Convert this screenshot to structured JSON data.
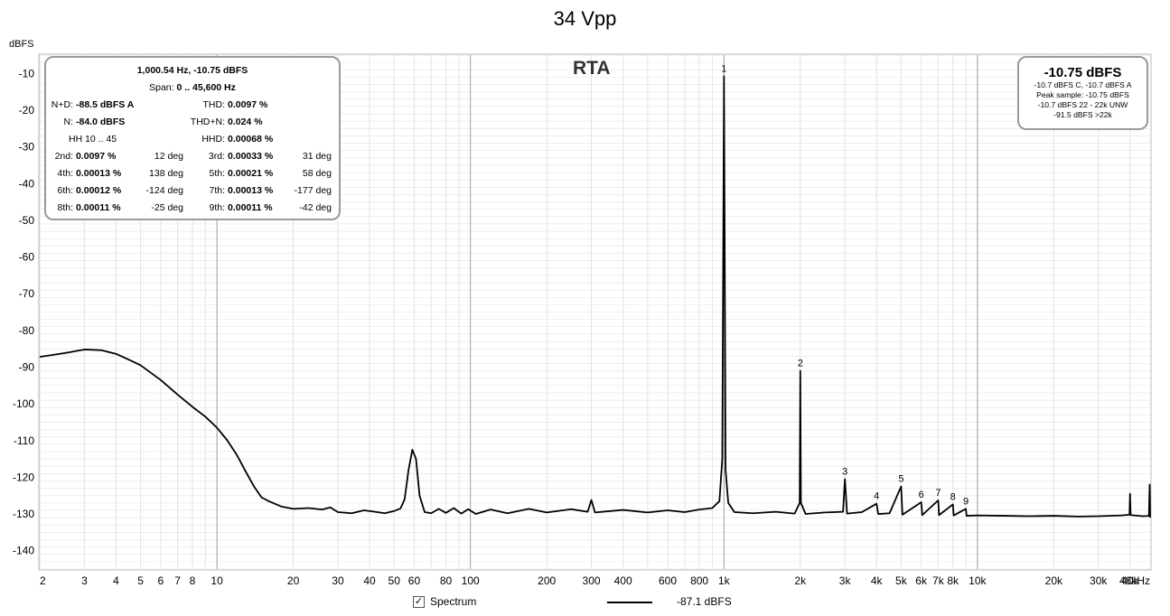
{
  "page": {
    "title": "34 Vpp",
    "panel_label": "RTA"
  },
  "stats": {
    "header": "1,000.54 Hz, -10.75 dBFS",
    "span_label": "Span:",
    "span_value": "0 .. 45,600 Hz",
    "nd_label": "N+D:",
    "nd_value": "-88.5 dBFS A",
    "thd_label": "THD:",
    "thd_value": "0.0097 %",
    "n_label": "N:",
    "n_value": "-84.0 dBFS",
    "thdn_label": "THD+N:",
    "thdn_value": "0.024 %",
    "hh_label": "HH 10 .. 45",
    "hhd_label": "HHD:",
    "hhd_value": "0.00068 %",
    "harmonics": [
      {
        "left_label": "2nd:",
        "left_value": "0.0097 %",
        "left_phase": "12 deg",
        "right_label": "3rd:",
        "right_value": "0.00033 %",
        "right_phase": "31 deg"
      },
      {
        "left_label": "4th:",
        "left_value": "0.00013 %",
        "left_phase": "138 deg",
        "right_label": "5th:",
        "right_value": "0.00021 %",
        "right_phase": "58 deg"
      },
      {
        "left_label": "6th:",
        "left_value": "0.00012 %",
        "left_phase": "-124 deg",
        "right_label": "7th:",
        "right_value": "0.00013 %",
        "right_phase": "-177 deg"
      },
      {
        "left_label": "8th:",
        "left_value": "0.00011 %",
        "left_phase": "-25 deg",
        "right_label": "9th:",
        "right_value": "0.00011 %",
        "right_phase": "-42 deg"
      }
    ]
  },
  "level": {
    "main": "-10.75 dBFS",
    "lines": [
      "-10.7 dBFS C, -10.7 dBFS A",
      "Peak sample: -10.75 dBFS",
      "-10.7 dBFS 22 - 22k UNW",
      "-91.5 dBFS >22k"
    ]
  },
  "legend": {
    "checkbox_mark": "✓",
    "series_label": "Spectrum",
    "series_value": "-87.1 dBFS"
  },
  "colors": {
    "trace": "#000000",
    "minor_grid": "#e3e3e3",
    "major_grid": "#9c9c9c",
    "frame": "#bdbdbd"
  },
  "chart_data": {
    "type": "line",
    "xscale": "log",
    "xlim": [
      2,
      48000
    ],
    "ylim": [
      -145,
      -5
    ],
    "ylabel": "dBFS",
    "xlabel": "",
    "grid": true,
    "x_tick_labels": [
      {
        "v": 2,
        "t": "2"
      },
      {
        "v": 3,
        "t": "3"
      },
      {
        "v": 4,
        "t": "4"
      },
      {
        "v": 5,
        "t": "5"
      },
      {
        "v": 6,
        "t": "6"
      },
      {
        "v": 7,
        "t": "7"
      },
      {
        "v": 8,
        "t": "8"
      },
      {
        "v": 10,
        "t": "10"
      },
      {
        "v": 20,
        "t": "20"
      },
      {
        "v": 30,
        "t": "30"
      },
      {
        "v": 40,
        "t": "40"
      },
      {
        "v": 50,
        "t": "50"
      },
      {
        "v": 60,
        "t": "60"
      },
      {
        "v": 80,
        "t": "80"
      },
      {
        "v": 100,
        "t": "100"
      },
      {
        "v": 200,
        "t": "200"
      },
      {
        "v": 300,
        "t": "300"
      },
      {
        "v": 400,
        "t": "400"
      },
      {
        "v": 600,
        "t": "600"
      },
      {
        "v": 800,
        "t": "800"
      },
      {
        "v": 1000,
        "t": "1k"
      },
      {
        "v": 2000,
        "t": "2k"
      },
      {
        "v": 3000,
        "t": "3k"
      },
      {
        "v": 4000,
        "t": "4k"
      },
      {
        "v": 5000,
        "t": "5k"
      },
      {
        "v": 6000,
        "t": "6k"
      },
      {
        "v": 7000,
        "t": "7k"
      },
      {
        "v": 8000,
        "t": "8k"
      },
      {
        "v": 10000,
        "t": "10k"
      },
      {
        "v": 20000,
        "t": "20k"
      },
      {
        "v": 30000,
        "t": "30k"
      },
      {
        "v": 40000,
        "t": "40k"
      },
      {
        "v": 48000,
        "t": "48kHz"
      }
    ],
    "y_ticks": [
      -10,
      -20,
      -30,
      -40,
      -50,
      -60,
      -70,
      -80,
      -90,
      -100,
      -110,
      -120,
      -130,
      -140
    ],
    "series": [
      {
        "points": [
          [
            2,
            -87.2
          ],
          [
            2.5,
            -86.2
          ],
          [
            3,
            -85.2
          ],
          [
            3.5,
            -85.4
          ],
          [
            4,
            -86.4
          ],
          [
            4.5,
            -88
          ],
          [
            5,
            -89.5
          ],
          [
            6,
            -93.5
          ],
          [
            7,
            -97.5
          ],
          [
            8,
            -100.8
          ],
          [
            9,
            -103.5
          ],
          [
            10,
            -106.5
          ],
          [
            11,
            -110
          ],
          [
            12,
            -114
          ],
          [
            13,
            -118.5
          ],
          [
            14,
            -122.5
          ],
          [
            15,
            -125.5
          ],
          [
            16,
            -126.5
          ],
          [
            18,
            -128
          ],
          [
            20,
            -128.6
          ],
          [
            23,
            -128.4
          ],
          [
            26,
            -128.8
          ],
          [
            28,
            -128.2
          ],
          [
            30,
            -129.5
          ],
          [
            34,
            -129.8
          ],
          [
            38,
            -129
          ],
          [
            42,
            -129.4
          ],
          [
            46,
            -129.8
          ],
          [
            50,
            -129.2
          ],
          [
            53,
            -128.5
          ],
          [
            55,
            -126
          ],
          [
            57,
            -118
          ],
          [
            59,
            -112.5
          ],
          [
            61,
            -115
          ],
          [
            63,
            -125
          ],
          [
            66,
            -129.5
          ],
          [
            70,
            -129.8
          ],
          [
            75,
            -128.6
          ],
          [
            80,
            -129.7
          ],
          [
            86,
            -128.4
          ],
          [
            92,
            -129.9
          ],
          [
            98,
            -128.7
          ],
          [
            105,
            -130
          ],
          [
            120,
            -128.8
          ],
          [
            140,
            -129.8
          ],
          [
            170,
            -128.6
          ],
          [
            200,
            -129.6
          ],
          [
            250,
            -128.7
          ],
          [
            290,
            -129.4
          ],
          [
            300,
            -126.2
          ],
          [
            310,
            -129.6
          ],
          [
            400,
            -128.9
          ],
          [
            500,
            -129.6
          ],
          [
            600,
            -129
          ],
          [
            700,
            -129.5
          ],
          [
            800,
            -128.8
          ],
          [
            900,
            -128.4
          ],
          [
            960,
            -126.5
          ],
          [
            985,
            -115
          ],
          [
            995,
            -50
          ],
          [
            1000.5,
            -10.75
          ],
          [
            1006,
            -50
          ],
          [
            1015,
            -118
          ],
          [
            1040,
            -127
          ],
          [
            1100,
            -129.5
          ],
          [
            1300,
            -129.8
          ],
          [
            1600,
            -129.4
          ],
          [
            1900,
            -129.9
          ],
          [
            1990,
            -127
          ],
          [
            2001,
            -91
          ],
          [
            2012,
            -127
          ],
          [
            2100,
            -130
          ],
          [
            2500,
            -129.6
          ],
          [
            2950,
            -129.4
          ],
          [
            3001,
            -120.5
          ],
          [
            3060,
            -129.9
          ],
          [
            3500,
            -129.5
          ],
          [
            4001,
            -127.2
          ],
          [
            4060,
            -130
          ],
          [
            4500,
            -129.8
          ],
          [
            5001,
            -122.5
          ],
          [
            5060,
            -130.2
          ],
          [
            6001,
            -126.8
          ],
          [
            6060,
            -130.3
          ],
          [
            7001,
            -126.3
          ],
          [
            7060,
            -130.3
          ],
          [
            8001,
            -127.4
          ],
          [
            8060,
            -130.4
          ],
          [
            9001,
            -128.6
          ],
          [
            9060,
            -130.5
          ],
          [
            10000,
            -130.4
          ],
          [
            13000,
            -130.5
          ],
          [
            16000,
            -130.6
          ],
          [
            20000,
            -130.5
          ],
          [
            25000,
            -130.7
          ],
          [
            30000,
            -130.6
          ],
          [
            37000,
            -130.4
          ],
          [
            39800,
            -130.2
          ],
          [
            40000,
            -124.5
          ],
          [
            40200,
            -130.3
          ],
          [
            45000,
            -130.6
          ],
          [
            47500,
            -130.5
          ],
          [
            47800,
            -122
          ],
          [
            48000,
            -131
          ]
        ]
      }
    ],
    "annotations": [
      {
        "x": 1000.5,
        "y": -10.75,
        "text": "1"
      },
      {
        "x": 2001,
        "y": -91,
        "text": "2"
      },
      {
        "x": 3001,
        "y": -120.5,
        "text": "3"
      },
      {
        "x": 4001,
        "y": -127.2,
        "text": "4"
      },
      {
        "x": 5001,
        "y": -122.5,
        "text": "5"
      },
      {
        "x": 6001,
        "y": -126.8,
        "text": "6"
      },
      {
        "x": 7001,
        "y": -126.3,
        "text": "7"
      },
      {
        "x": 8001,
        "y": -127.4,
        "text": "8"
      },
      {
        "x": 9001,
        "y": -128.6,
        "text": "9"
      }
    ]
  }
}
